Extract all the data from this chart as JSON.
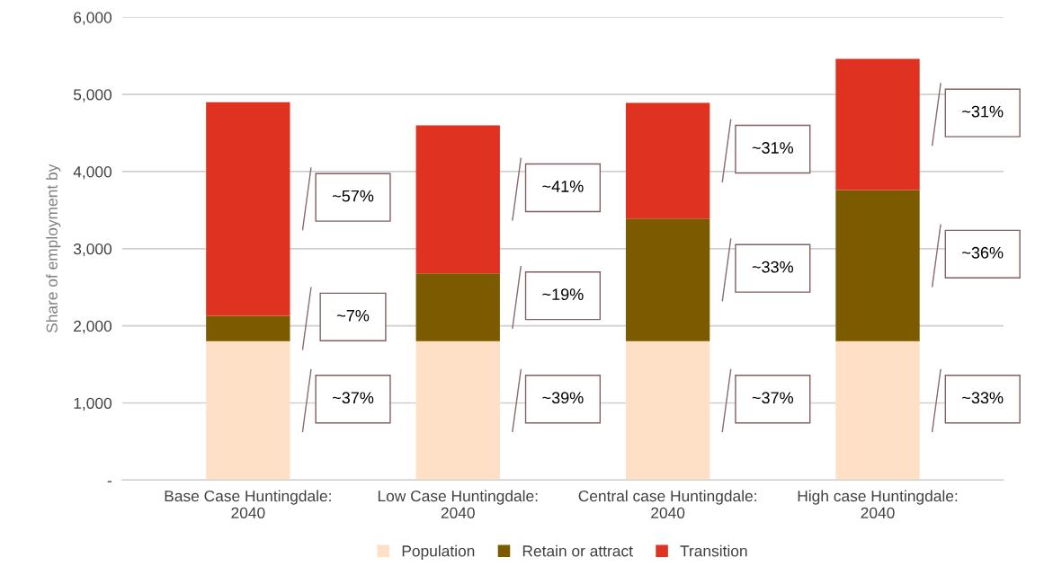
{
  "chart_data": {
    "type": "bar",
    "stacked": true,
    "ylabel": "Share of employment by",
    "categories": [
      "Base Case Huntingdale:\n2040",
      "Low Case Huntingdale:\n2040",
      "Central case Huntingdale:\n2040",
      "High case Huntingdale:\n2040"
    ],
    "series": [
      {
        "name": "Population",
        "color": "#fde0c5",
        "values": [
          1800,
          1800,
          1800,
          1800
        ]
      },
      {
        "name": "Retain or attract",
        "color": "#7b5a00",
        "values": [
          330,
          880,
          1590,
          1960
        ]
      },
      {
        "name": "Transition",
        "color": "#df3220",
        "values": [
          2770,
          1920,
          1500,
          1700
        ]
      }
    ],
    "ylim": [
      0,
      6000
    ],
    "yticks": [
      {
        "value": 0,
        "label": "-"
      },
      {
        "value": 1000,
        "label": "1,000"
      },
      {
        "value": 2000,
        "label": "2,000"
      },
      {
        "value": 3000,
        "label": "3,000"
      },
      {
        "value": 4000,
        "label": "4,000"
      },
      {
        "value": 5000,
        "label": "5,000"
      },
      {
        "value": 6000,
        "label": "6,000"
      }
    ],
    "grid": "y",
    "legend": "bottom",
    "annotations": [
      "~37%",
      "~7%",
      "~57%",
      "~39%",
      "~19%",
      "~41%",
      "~37%",
      "~33%",
      "~31%",
      "~33%",
      "~36%",
      "~31%"
    ]
  }
}
